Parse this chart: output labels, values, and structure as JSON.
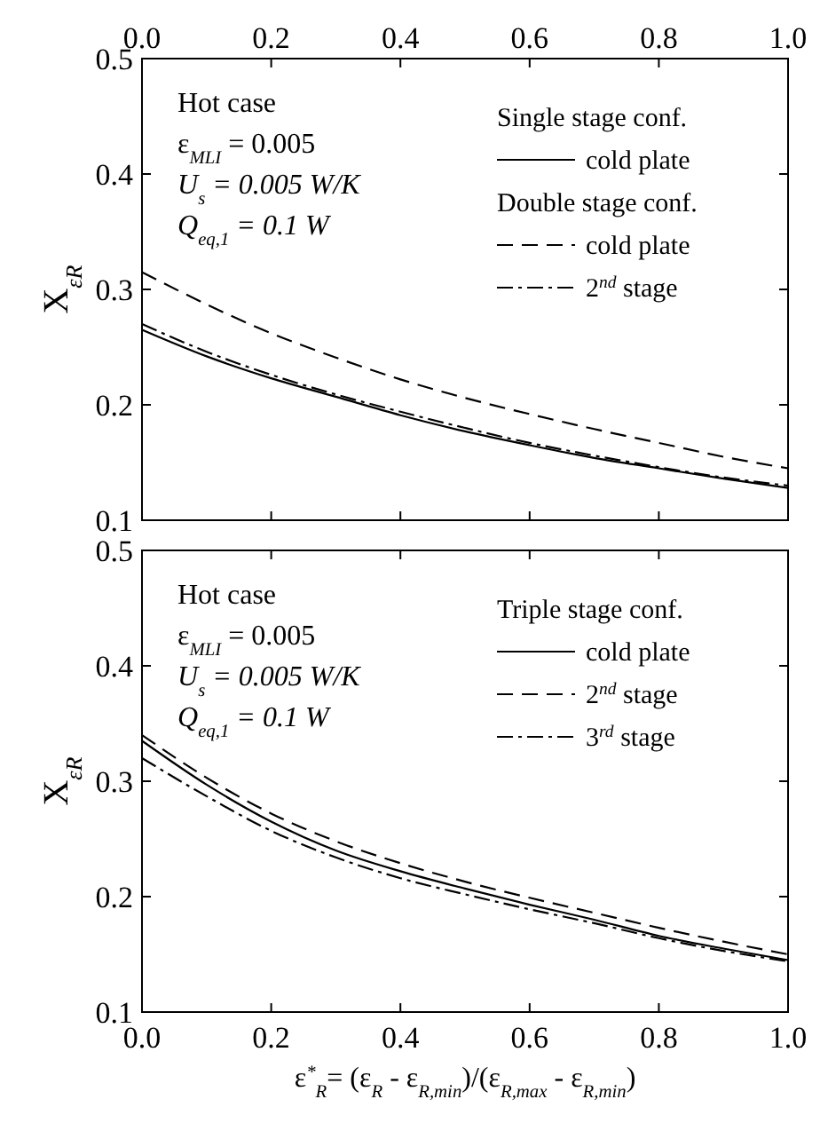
{
  "chart_data": [
    {
      "type": "line",
      "ylabel": "X$_{εR}$",
      "legend_title": "Single stage conf.",
      "annotations": [
        "Hot case",
        "ε$_{MLI}$ = 0.005",
        "U$_{s}$ = 0.005 W/K",
        "Q$_{eq,1}$ = 0.1 W",
        "Double stage conf."
      ],
      "x": [
        0,
        0.1,
        0.2,
        0.3,
        0.4,
        0.5,
        0.6,
        0.7,
        0.8,
        0.9,
        1.0
      ],
      "xlim": [
        0,
        1
      ],
      "xticks": [
        0,
        0.2,
        0.4,
        0.6,
        0.8,
        1.0
      ],
      "x2lim": [
        0,
        1
      ],
      "x2ticks": [
        "0.0",
        0.2,
        0.4,
        0.6,
        0.8,
        "1.0"
      ],
      "ylim": [
        0.1,
        0.5
      ],
      "yticks": [
        0.1,
        0.2,
        0.3,
        0.4,
        0.5
      ],
      "tick_labels": "y",
      "legend": "top right",
      "grid": false,
      "series": [
        {
          "name": "cold plate",
          "color": "#000000",
          "line_style": "solid",
          "values": [
            0.265,
            0.242,
            0.223,
            0.207,
            0.191,
            0.177,
            0.165,
            0.154,
            0.145,
            0.136,
            0.128
          ]
        },
        {
          "name": "cold plate",
          "color": "#000000",
          "line_style": "dashed",
          "values": [
            0.315,
            0.287,
            0.262,
            0.241,
            0.222,
            0.206,
            0.192,
            0.179,
            0.167,
            0.155,
            0.145
          ]
        },
        {
          "name": "2$^{nd}$ stage",
          "color": "#000000",
          "line_style": "dashdot",
          "values": [
            0.27,
            0.246,
            0.226,
            0.209,
            0.194,
            0.18,
            0.167,
            0.156,
            0.146,
            0.137,
            0.13
          ]
        }
      ]
    },
    {
      "type": "line",
      "xlabel": "ε$^{*}$$_{R}$= (ε$_{R}$ - ε$_{R,min}$)/(ε$_{R,max}$ - ε$_{R,min}$)",
      "ylabel": "X$_{εR}$",
      "legend_title": "Triple stage conf.",
      "annotations": [
        "Hot case",
        "ε$_{MLI}$ = 0.005",
        "U$_{s}$ = 0.005 W/K",
        "Q$_{eq,1}$ = 0.1 W"
      ],
      "x": [
        0,
        0.1,
        0.2,
        0.3,
        0.4,
        0.5,
        0.6,
        0.7,
        0.8,
        0.9,
        1.0
      ],
      "xlim": [
        0,
        1
      ],
      "xticks": [
        {
          "value": 0,
          "label": "0.0"
        },
        0.2,
        0.4,
        0.6,
        0.8,
        {
          "value": 1,
          "label": "1.0"
        }
      ],
      "ylim": [
        0.1,
        0.5
      ],
      "yticks": [
        0.1,
        0.2,
        0.3,
        0.4,
        0.5
      ],
      "legend": "top right",
      "grid": false,
      "series": [
        {
          "name": "cold plate",
          "color": "#000000",
          "line_style": "solid",
          "values": [
            0.335,
            0.297,
            0.265,
            0.24,
            0.222,
            0.207,
            0.193,
            0.18,
            0.166,
            0.155,
            0.145
          ]
        },
        {
          "name": "2$^{nd}$ stage",
          "color": "#000000",
          "line_style": "dashed",
          "values": [
            0.34,
            0.303,
            0.272,
            0.248,
            0.229,
            0.213,
            0.199,
            0.186,
            0.173,
            0.161,
            0.15
          ]
        },
        {
          "name": "3$^{rd}$ stage",
          "color": "#000000",
          "line_style": "dashdot",
          "values": [
            0.32,
            0.287,
            0.257,
            0.234,
            0.216,
            0.202,
            0.189,
            0.177,
            0.164,
            0.153,
            0.144
          ]
        }
      ]
    }
  ]
}
